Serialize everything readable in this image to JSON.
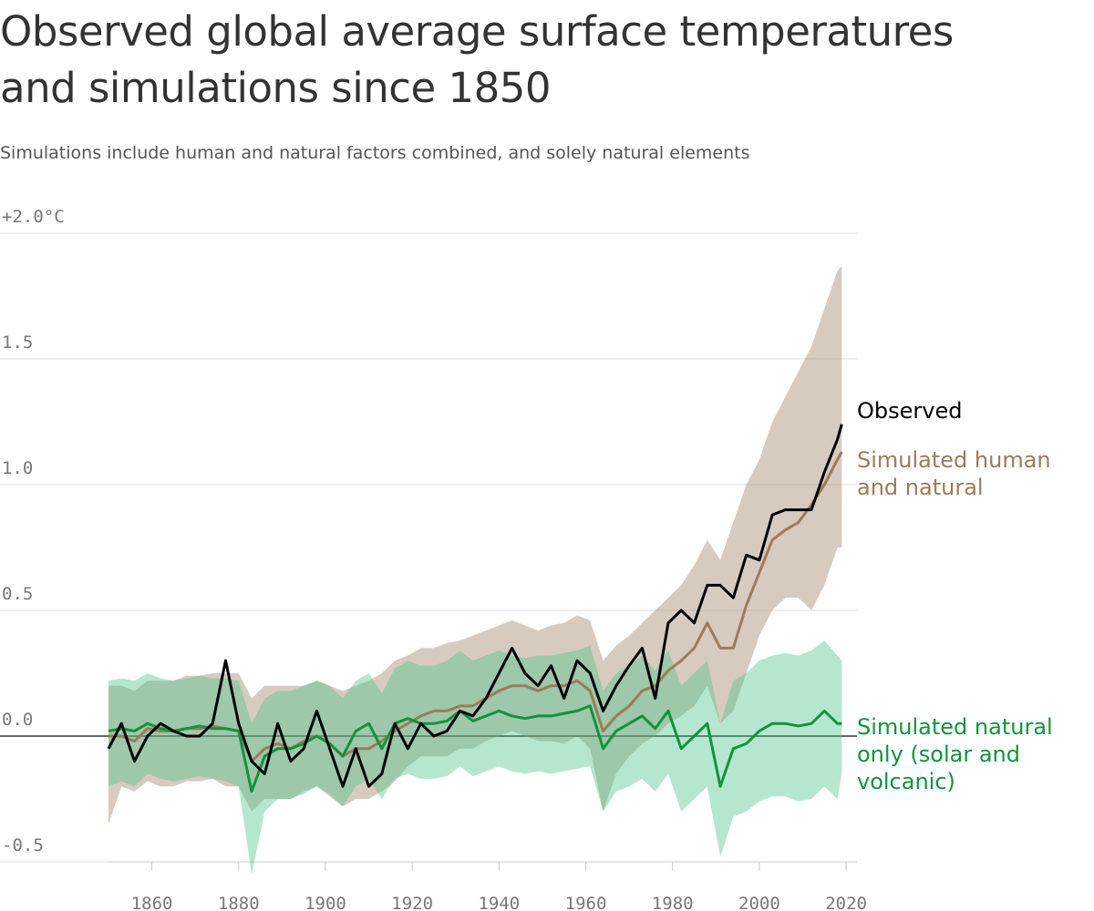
{
  "chart_data": {
    "type": "line",
    "title": "Observed global average surface temperatures and simulations since 1850",
    "subtitle": "Simulations include human and natural factors combined, and solely natural elements",
    "x": [
      1850,
      1853,
      1856,
      1859,
      1862,
      1865,
      1868,
      1871,
      1874,
      1877,
      1880,
      1883,
      1886,
      1889,
      1892,
      1895,
      1898,
      1901,
      1904,
      1907,
      1910,
      1913,
      1916,
      1919,
      1922,
      1925,
      1928,
      1931,
      1934,
      1937,
      1940,
      1943,
      1946,
      1949,
      1952,
      1955,
      1958,
      1961,
      1964,
      1967,
      1970,
      1973,
      1976,
      1979,
      1982,
      1985,
      1988,
      1991,
      1994,
      1997,
      2000,
      2003,
      2006,
      2009,
      2012,
      2015,
      2018,
      2019
    ],
    "xlim": [
      1825,
      2022.5
    ],
    "xticks": [
      1860,
      1880,
      1900,
      1920,
      1940,
      1960,
      1980,
      2000,
      2020
    ],
    "ylim": [
      -0.5,
      2.0
    ],
    "yticks": [
      {
        "value": 2.0,
        "label": "+2.0°C"
      },
      1.5,
      {
        "value": 1.0,
        "label": "1.0"
      },
      0.5,
      {
        "value": 0.0,
        "label": "0.0"
      },
      -0.5
    ],
    "grid": true,
    "series": [
      {
        "name": "Simulated human and natural",
        "color": "#9c7b5a",
        "band_color": "rgba(160,132,104,0.42)",
        "values": [
          0.0,
          0.0,
          -0.02,
          0.03,
          0.02,
          0.02,
          0.03,
          0.03,
          0.04,
          0.03,
          0.02,
          -0.1,
          -0.05,
          -0.03,
          -0.05,
          -0.02,
          0.0,
          -0.03,
          -0.08,
          -0.05,
          -0.05,
          -0.02,
          0.02,
          0.05,
          0.08,
          0.1,
          0.1,
          0.12,
          0.12,
          0.15,
          0.18,
          0.2,
          0.2,
          0.18,
          0.2,
          0.2,
          0.22,
          0.18,
          0.02,
          0.08,
          0.12,
          0.18,
          0.2,
          0.26,
          0.3,
          0.35,
          0.45,
          0.35,
          0.35,
          0.52,
          0.65,
          0.78,
          0.82,
          0.85,
          0.92,
          1.0,
          1.1,
          1.13
        ],
        "range_low": [
          -0.35,
          -0.2,
          -0.22,
          -0.18,
          -0.2,
          -0.2,
          -0.18,
          -0.18,
          -0.17,
          -0.2,
          -0.2,
          -0.3,
          -0.25,
          -0.25,
          -0.25,
          -0.22,
          -0.2,
          -0.24,
          -0.28,
          -0.25,
          -0.25,
          -0.22,
          -0.18,
          -0.12,
          -0.08,
          -0.08,
          -0.08,
          -0.05,
          -0.05,
          -0.02,
          0.0,
          0.02,
          0.0,
          -0.02,
          -0.02,
          -0.03,
          0.0,
          -0.05,
          -0.3,
          -0.15,
          -0.08,
          -0.03,
          0.0,
          0.05,
          0.08,
          0.12,
          0.2,
          0.05,
          0.1,
          0.25,
          0.4,
          0.5,
          0.55,
          0.55,
          0.5,
          0.6,
          0.75,
          0.75
        ],
        "range_high": [
          0.2,
          0.2,
          0.18,
          0.22,
          0.22,
          0.22,
          0.24,
          0.24,
          0.25,
          0.25,
          0.25,
          0.15,
          0.2,
          0.2,
          0.2,
          0.2,
          0.22,
          0.2,
          0.18,
          0.2,
          0.22,
          0.25,
          0.3,
          0.32,
          0.35,
          0.35,
          0.37,
          0.38,
          0.4,
          0.42,
          0.44,
          0.46,
          0.44,
          0.42,
          0.44,
          0.45,
          0.48,
          0.46,
          0.3,
          0.36,
          0.4,
          0.45,
          0.5,
          0.55,
          0.6,
          0.68,
          0.78,
          0.7,
          0.85,
          1.0,
          1.1,
          1.25,
          1.35,
          1.45,
          1.55,
          1.7,
          1.85,
          1.87
        ]
      },
      {
        "name": "Simulated natural only (solar and volcanic)",
        "color": "#13923f",
        "band_color": "rgba(70,195,135,0.4)",
        "values": [
          0.02,
          0.03,
          0.02,
          0.05,
          0.03,
          0.02,
          0.03,
          0.04,
          0.03,
          0.03,
          0.02,
          -0.22,
          -0.08,
          -0.05,
          -0.05,
          -0.03,
          0.0,
          -0.03,
          -0.08,
          0.02,
          0.05,
          -0.05,
          0.05,
          0.07,
          0.05,
          0.05,
          0.06,
          0.1,
          0.06,
          0.08,
          0.1,
          0.08,
          0.07,
          0.08,
          0.08,
          0.09,
          0.1,
          0.12,
          -0.05,
          0.02,
          0.05,
          0.08,
          0.03,
          0.1,
          -0.05,
          0.0,
          0.05,
          -0.2,
          -0.05,
          -0.03,
          0.02,
          0.05,
          0.05,
          0.04,
          0.05,
          0.1,
          0.05,
          0.05
        ],
        "range_low": [
          -0.2,
          -0.18,
          -0.2,
          -0.15,
          -0.17,
          -0.18,
          -0.17,
          -0.16,
          -0.17,
          -0.18,
          -0.2,
          -0.55,
          -0.3,
          -0.25,
          -0.25,
          -0.23,
          -0.2,
          -0.23,
          -0.28,
          -0.2,
          -0.17,
          -0.25,
          -0.17,
          -0.15,
          -0.17,
          -0.17,
          -0.16,
          -0.12,
          -0.16,
          -0.14,
          -0.12,
          -0.14,
          -0.15,
          -0.14,
          -0.15,
          -0.14,
          -0.13,
          -0.12,
          -0.3,
          -0.22,
          -0.2,
          -0.17,
          -0.22,
          -0.15,
          -0.3,
          -0.25,
          -0.2,
          -0.48,
          -0.32,
          -0.3,
          -0.26,
          -0.24,
          -0.24,
          -0.26,
          -0.25,
          -0.2,
          -0.25,
          -0.15
        ],
        "range_high": [
          0.22,
          0.23,
          0.22,
          0.25,
          0.23,
          0.22,
          0.23,
          0.24,
          0.23,
          0.23,
          0.22,
          0.05,
          0.15,
          0.18,
          0.18,
          0.2,
          0.22,
          0.2,
          0.15,
          0.22,
          0.25,
          0.17,
          0.27,
          0.3,
          0.28,
          0.28,
          0.3,
          0.34,
          0.3,
          0.32,
          0.34,
          0.32,
          0.31,
          0.32,
          0.32,
          0.33,
          0.34,
          0.36,
          0.18,
          0.25,
          0.28,
          0.32,
          0.26,
          0.34,
          0.2,
          0.25,
          0.3,
          0.05,
          0.22,
          0.25,
          0.3,
          0.32,
          0.33,
          0.32,
          0.34,
          0.38,
          0.32,
          0.3
        ]
      },
      {
        "name": "Observed",
        "color": "#000000",
        "values": [
          -0.05,
          0.05,
          -0.1,
          0.0,
          0.05,
          0.02,
          0.0,
          0.0,
          0.05,
          0.3,
          0.05,
          -0.1,
          -0.15,
          0.05,
          -0.1,
          -0.05,
          0.1,
          -0.05,
          -0.2,
          -0.05,
          -0.2,
          -0.15,
          0.05,
          -0.05,
          0.05,
          0.0,
          0.02,
          0.1,
          0.08,
          0.15,
          0.25,
          0.35,
          0.25,
          0.2,
          0.28,
          0.15,
          0.3,
          0.25,
          0.1,
          0.2,
          0.28,
          0.35,
          0.15,
          0.45,
          0.5,
          0.45,
          0.6,
          0.6,
          0.55,
          0.72,
          0.7,
          0.88,
          0.9,
          0.9,
          0.9,
          1.05,
          1.18,
          1.24
        ]
      }
    ]
  }
}
